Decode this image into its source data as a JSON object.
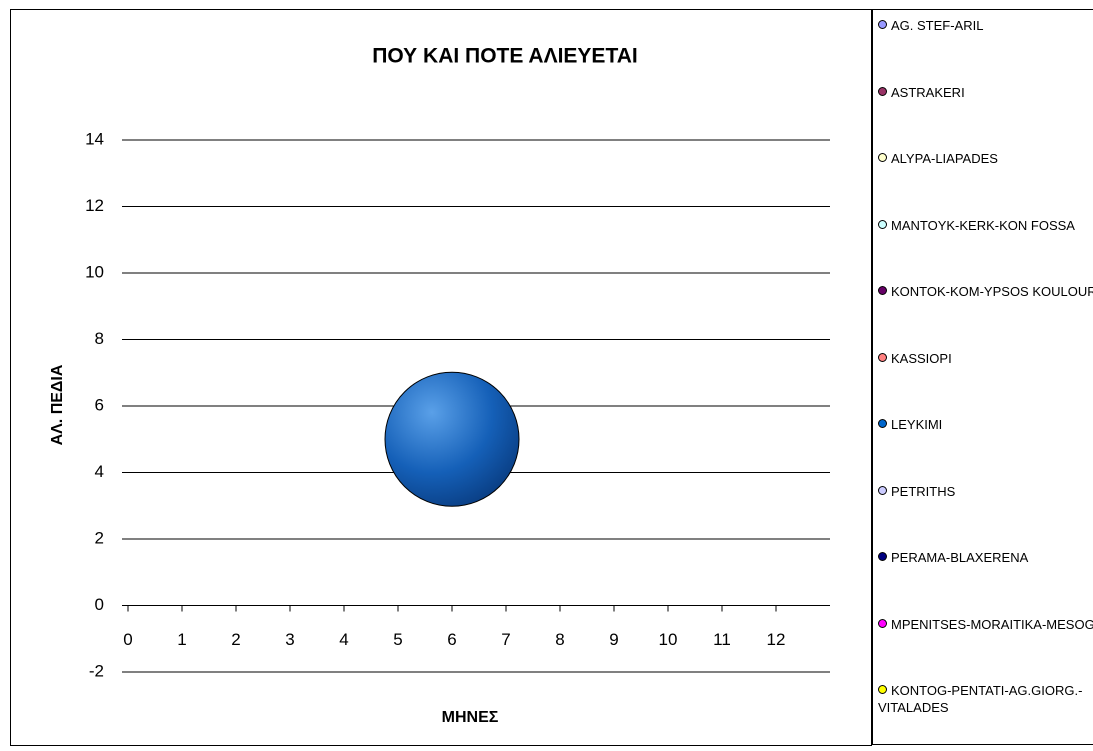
{
  "chart_data": {
    "type": "bubble",
    "title": "ΠΟΥ ΚΑΙ ΠΟΤΕ ΑΛΙΕΥΕΤΑΙ",
    "xlabel": "ΜΗΝΕΣ",
    "ylabel": "ΑΛ. ΠΕΔΙΑ",
    "xlim": [
      0,
      13
    ],
    "xticks": [
      0,
      1,
      2,
      3,
      4,
      5,
      6,
      7,
      8,
      9,
      10,
      11,
      12
    ],
    "ylim": [
      -2,
      14
    ],
    "yticks": [
      -2,
      0,
      2,
      4,
      6,
      8,
      10,
      12,
      14
    ],
    "grid": true,
    "legend": "right",
    "series": [
      {
        "name": "AG. STEF-ARIL",
        "color": "#9999ff",
        "x": [],
        "values": [],
        "sizes": []
      },
      {
        "name": "ASTRAKERI",
        "color": "#993366",
        "x": [],
        "values": [],
        "sizes": []
      },
      {
        "name": "ALYPA-LIAPADES",
        "color": "#ffffcc",
        "x": [],
        "values": [],
        "sizes": []
      },
      {
        "name": "MANTOYK-KERK-KON FOSSA",
        "color": "#ccffff",
        "x": [],
        "values": [],
        "sizes": []
      },
      {
        "name": "KONTOK-KOM-YPSOS KOULOUR",
        "color": "#660066",
        "x": [],
        "values": [],
        "sizes": []
      },
      {
        "name": "KASSIOPI",
        "color": "#ff8080",
        "x": [],
        "values": [],
        "sizes": []
      },
      {
        "name": "LEYKIMI",
        "color": "#0066cc",
        "x": [
          6
        ],
        "values": [
          5
        ],
        "sizes": [
          1
        ]
      },
      {
        "name": "PETRITHS",
        "color": "#ccccff",
        "x": [],
        "values": [],
        "sizes": []
      },
      {
        "name": "PERAMA-BLAXERENA",
        "color": "#000080",
        "x": [],
        "values": [],
        "sizes": []
      },
      {
        "name": "MPENITSES-MORAITIKA-MESOGGI",
        "color": "#ff00ff",
        "x": [],
        "values": [],
        "sizes": []
      },
      {
        "name": "KONTOG-PENTATI-AG.GIORG.-VITALADES",
        "color": "#ffff00",
        "x": [],
        "values": [],
        "sizes": []
      }
    ]
  }
}
